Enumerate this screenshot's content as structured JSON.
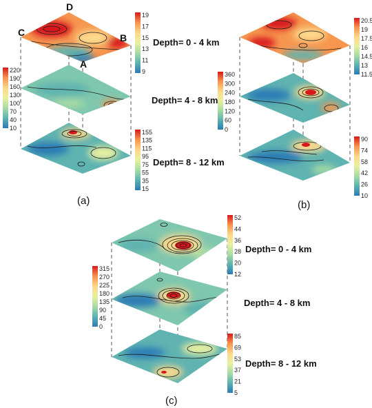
{
  "panels": [
    {
      "id": "a",
      "label": "(a)",
      "corner_labels": [
        "A",
        "B",
        "C",
        "D"
      ],
      "layers": [
        {
          "depth": "Depth= 0 - 4 km",
          "ticks": [
            "19",
            "17",
            "15",
            "13",
            "11",
            "9"
          ]
        },
        {
          "depth": "Depth= 4 - 8 km",
          "ticks": [
            "220",
            "190",
            "160",
            "130",
            "100",
            "70",
            "40",
            "10"
          ]
        },
        {
          "depth": "Depth= 8 - 12 km",
          "ticks": [
            "155",
            "135",
            "115",
            "95",
            "75",
            "55",
            "35",
            "15"
          ]
        }
      ]
    },
    {
      "id": "b",
      "label": "(b)",
      "layers": [
        {
          "depth": "",
          "ticks": [
            "20.5",
            "19",
            "17.5",
            "16",
            "14.5",
            "13",
            "11.5"
          ]
        },
        {
          "depth": "",
          "ticks": [
            "360",
            "300",
            "240",
            "180",
            "120",
            "60",
            "0"
          ]
        },
        {
          "depth": "",
          "ticks": [
            "90",
            "74",
            "58",
            "42",
            "26",
            "10"
          ]
        }
      ]
    },
    {
      "id": "c",
      "label": "(c)",
      "layers": [
        {
          "depth": "Depth= 0 - 4 km",
          "ticks": [
            "52",
            "44",
            "36",
            "28",
            "20",
            "12"
          ]
        },
        {
          "depth": "Depth= 4 - 8 km",
          "ticks": [
            "315",
            "270",
            "225",
            "180",
            "135",
            "90",
            "45",
            "0"
          ]
        },
        {
          "depth": "Depth= 8 - 12 km",
          "ticks": [
            "85",
            "69",
            "53",
            "37",
            "21",
            "5"
          ]
        }
      ]
    }
  ],
  "colors": {
    "colormap": [
      "#2c7bb6",
      "#5fb3b0",
      "#abdda4",
      "#e8f0a0",
      "#fdd98c",
      "#f7964f",
      "#d7191c"
    ],
    "contour": "#1a1a1a",
    "guide": "#555555"
  }
}
